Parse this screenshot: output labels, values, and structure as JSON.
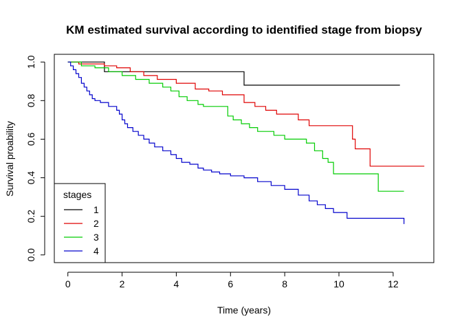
{
  "chart_data": {
    "type": "line",
    "step": true,
    "title": "KM estimated survival according to identified stage from biopsy",
    "xlabel": "Time (years)",
    "ylabel": "Survival proability",
    "xlim": [
      -0.5,
      13.5
    ],
    "ylim": [
      -0.04,
      1.04
    ],
    "xticks": [
      0,
      2,
      4,
      6,
      8,
      10,
      12
    ],
    "yticks": [
      0.0,
      0.2,
      0.4,
      0.6,
      0.8,
      1.0
    ],
    "xtick_labels": [
      "0",
      "2",
      "4",
      "6",
      "8",
      "10",
      "12"
    ],
    "ytick_labels": [
      "0.0",
      "0.2",
      "0.4",
      "0.6",
      "0.8",
      "1.0"
    ],
    "grid": false,
    "legend": {
      "title": "stages",
      "position": "bottom-left",
      "entries": [
        "1",
        "2",
        "3",
        "4"
      ]
    },
    "series": [
      {
        "name": "1",
        "color": "#000000",
        "x": [
          0,
          1.35,
          6.5,
          12.25
        ],
        "y": [
          1.0,
          0.95,
          0.88,
          0.88
        ]
      },
      {
        "name": "2",
        "color": "#DF0000",
        "x": [
          0,
          0.4,
          1.35,
          1.8,
          2.3,
          2.8,
          3.3,
          4.0,
          4.7,
          5.2,
          5.7,
          6.5,
          6.9,
          7.3,
          7.7,
          8.5,
          8.9,
          10.5,
          10.6,
          11.15,
          13.15
        ],
        "y": [
          1.0,
          0.99,
          0.98,
          0.97,
          0.95,
          0.93,
          0.91,
          0.89,
          0.86,
          0.85,
          0.83,
          0.79,
          0.77,
          0.75,
          0.73,
          0.7,
          0.67,
          0.6,
          0.55,
          0.46,
          0.46
        ],
        "end_x": 13.15
      },
      {
        "name": "3",
        "color": "#00CC00",
        "x": [
          0,
          0.5,
          1.0,
          1.5,
          2.0,
          2.5,
          3.0,
          3.5,
          3.8,
          4.1,
          4.4,
          4.8,
          5.0,
          5.5,
          5.9,
          6.1,
          6.4,
          6.7,
          7.0,
          7.6,
          8.0,
          8.8,
          9.1,
          9.4,
          9.6,
          9.8,
          10.6,
          11.45,
          12.4
        ],
        "y": [
          1.0,
          0.98,
          0.97,
          0.95,
          0.93,
          0.91,
          0.89,
          0.87,
          0.85,
          0.82,
          0.8,
          0.78,
          0.77,
          0.77,
          0.72,
          0.7,
          0.68,
          0.66,
          0.64,
          0.62,
          0.6,
          0.58,
          0.54,
          0.5,
          0.48,
          0.42,
          0.42,
          0.33,
          0.33
        ],
        "end_x": 12.4
      },
      {
        "name": "4",
        "color": "#0000CC",
        "x": [
          0,
          0.1,
          0.2,
          0.3,
          0.4,
          0.5,
          0.6,
          0.7,
          0.8,
          0.9,
          1.0,
          1.2,
          1.5,
          1.8,
          1.9,
          2.0,
          2.1,
          2.2,
          2.4,
          2.6,
          2.8,
          3.0,
          3.2,
          3.5,
          3.8,
          4.0,
          4.2,
          4.5,
          4.8,
          5.0,
          5.3,
          5.6,
          6.0,
          6.5,
          7.0,
          7.5,
          8.0,
          8.5,
          8.9,
          9.2,
          9.5,
          9.8,
          10.3,
          12.4
        ],
        "y": [
          1.0,
          0.98,
          0.96,
          0.94,
          0.92,
          0.89,
          0.87,
          0.85,
          0.83,
          0.81,
          0.8,
          0.79,
          0.77,
          0.75,
          0.73,
          0.7,
          0.68,
          0.66,
          0.64,
          0.62,
          0.6,
          0.58,
          0.56,
          0.54,
          0.52,
          0.5,
          0.48,
          0.47,
          0.45,
          0.44,
          0.43,
          0.42,
          0.41,
          0.4,
          0.38,
          0.36,
          0.34,
          0.31,
          0.28,
          0.26,
          0.24,
          0.22,
          0.19,
          0.16
        ],
        "end_x": 12.4
      }
    ]
  }
}
